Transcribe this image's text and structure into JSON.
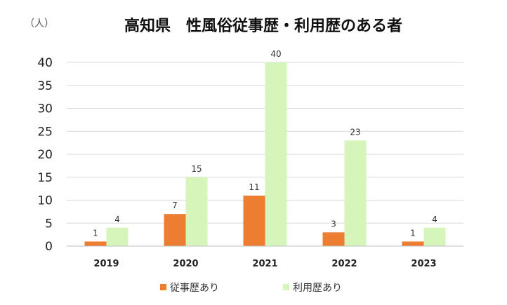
{
  "chart_data": {
    "type": "bar",
    "title": "高知県　性風俗従事歴・利用歴のある者",
    "unit_label": "（人）",
    "categories": [
      "2019",
      "2020",
      "2021",
      "2022",
      "2023"
    ],
    "series": [
      {
        "name": "従事歴あり",
        "color": "#ED7D31",
        "values": [
          1,
          7,
          11,
          3,
          1
        ]
      },
      {
        "name": "利用歴あり",
        "color": "#D5F5BA",
        "values": [
          4,
          15,
          40,
          23,
          4
        ]
      }
    ],
    "ylim": [
      0,
      40
    ],
    "yticks": [
      0,
      5,
      10,
      15,
      20,
      25,
      30,
      35,
      40
    ],
    "grid": true,
    "legend_position": "bottom",
    "gridline_color": "#D9D9D9",
    "axis_color": "#BFBFBF"
  }
}
